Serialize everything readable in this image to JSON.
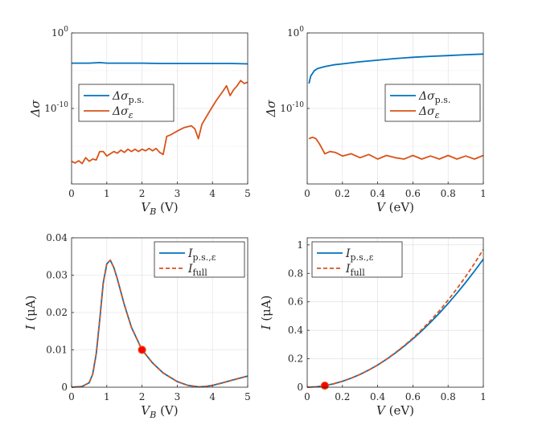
{
  "colors": {
    "blue": "#0072BD",
    "orange": "#D95319",
    "marker_fill": "#FF0000",
    "marker_edge": "#D95319"
  },
  "chart_data": [
    {
      "type": "line",
      "xscale": "linear",
      "yscale": "log",
      "xlabel_main": "V",
      "xlabel_sub": "B",
      "xlabel_unit": "(V)",
      "ylabel": "Δσ",
      "xlim": [
        0,
        5
      ],
      "ylim": [
        1e-20,
        1
      ],
      "xticks": [
        "0",
        "1",
        "2",
        "3",
        "4",
        "5"
      ],
      "yticks": [
        {
          "base": "10",
          "exp": "0"
        },
        {
          "base": "10",
          "exp": "-10"
        }
      ],
      "legend_position": "center-left",
      "series": [
        {
          "name": "Δσp.s.",
          "legend_main": "Δσ",
          "legend_sub": "p.s.",
          "color": "blue",
          "x": [
            0,
            0.5,
            0.8,
            1.0,
            1.5,
            2.0,
            2.5,
            3.0,
            3.5,
            4.0,
            4.5,
            5.0
          ],
          "y": [
            0.0001,
            0.0001,
            0.00012,
            0.0001,
            0.0001,
            0.0001,
            9e-05,
            9e-05,
            9e-05,
            9e-05,
            9e-05,
            8e-05
          ]
        },
        {
          "name": "Δσε",
          "legend_main": "Δσ",
          "legend_sub": "ε",
          "color": "orange",
          "x": [
            0,
            0.1,
            0.2,
            0.3,
            0.4,
            0.5,
            0.6,
            0.7,
            0.8,
            0.9,
            1.0,
            1.1,
            1.2,
            1.3,
            1.4,
            1.5,
            1.6,
            1.7,
            1.8,
            1.9,
            2.0,
            2.1,
            2.2,
            2.3,
            2.4,
            2.5,
            2.6,
            2.7,
            2.8,
            3.0,
            3.2,
            3.4,
            3.5,
            3.6,
            3.7,
            3.9,
            4.1,
            4.3,
            4.4,
            4.5,
            4.6,
            4.7,
            4.8,
            4.9,
            5.0
          ],
          "y": [
            1e-17,
            6e-18,
            1.2e-17,
            5e-18,
            3e-17,
            1e-17,
            2e-17,
            1.5e-17,
            2e-16,
            2e-16,
            5e-17,
            1e-16,
            2e-16,
            1.2e-16,
            3e-16,
            1.5e-16,
            4e-16,
            2e-16,
            4e-16,
            2e-16,
            4e-16,
            2.5e-16,
            5e-16,
            2.5e-16,
            5e-16,
            1.5e-16,
            8e-17,
            2e-14,
            3e-14,
            1e-13,
            3e-13,
            5e-13,
            2e-13,
            1e-14,
            8e-13,
            3e-11,
            1e-09,
            2e-08,
            1e-07,
            5e-09,
            3e-08,
            1e-07,
            5e-07,
            2e-07,
            3e-07
          ]
        }
      ]
    },
    {
      "type": "line",
      "xscale": "linear",
      "yscale": "log",
      "xlabel_main": "V",
      "xlabel_sub": "",
      "xlabel_unit": "(eV)",
      "ylabel": "Δσ",
      "xlim": [
        0,
        1
      ],
      "ylim": [
        1e-20,
        1
      ],
      "xticks": [
        "0",
        "0.2",
        "0.4",
        "0.6",
        "0.8",
        "1"
      ],
      "yticks": [
        {
          "base": "10",
          "exp": "0"
        },
        {
          "base": "10",
          "exp": "-10"
        }
      ],
      "legend_position": "center-right",
      "series": [
        {
          "name": "Δσp.s.",
          "legend_main": "Δσ",
          "legend_sub": "p.s.",
          "color": "blue",
          "x": [
            0.01,
            0.02,
            0.04,
            0.06,
            0.1,
            0.15,
            0.2,
            0.3,
            0.4,
            0.5,
            0.6,
            0.7,
            0.8,
            0.9,
            1.0
          ],
          "y": [
            2e-07,
            2e-06,
            1e-05,
            2e-05,
            3.5e-05,
            6e-05,
            8e-05,
            0.00015,
            0.00025,
            0.0004,
            0.0006,
            0.0008,
            0.001,
            0.0013,
            0.0016
          ]
        },
        {
          "name": "Δσε",
          "legend_main": "Δσ",
          "legend_sub": "ε",
          "color": "orange",
          "x": [
            0.01,
            0.03,
            0.05,
            0.07,
            0.1,
            0.13,
            0.16,
            0.2,
            0.25,
            0.3,
            0.35,
            0.4,
            0.45,
            0.5,
            0.55,
            0.6,
            0.65,
            0.7,
            0.75,
            0.8,
            0.85,
            0.9,
            0.95,
            1.0
          ],
          "y": [
            1e-14,
            1.5e-14,
            1e-14,
            2e-15,
            1e-16,
            2e-16,
            1.5e-16,
            5e-17,
            1e-16,
            3e-17,
            8e-17,
            2e-17,
            6e-17,
            3e-17,
            2e-17,
            6e-17,
            2e-17,
            5e-17,
            2e-17,
            6e-17,
            2e-17,
            5e-17,
            2e-17,
            6e-17
          ]
        }
      ]
    },
    {
      "type": "line",
      "xscale": "linear",
      "yscale": "linear",
      "xlabel_main": "V",
      "xlabel_sub": "B",
      "xlabel_unit": "(V)",
      "ylabel": "I (μA)",
      "xlim": [
        0,
        5
      ],
      "ylim": [
        0,
        0.04
      ],
      "xticks": [
        "0",
        "1",
        "2",
        "3",
        "4",
        "5"
      ],
      "yticks": [
        "0",
        "0.01",
        "0.02",
        "0.03",
        "0.04"
      ],
      "legend_position": "top-right",
      "series": [
        {
          "name": "Ip.s.,ε",
          "legend_main": "I",
          "legend_sub": "p.s.,ε",
          "color": "blue",
          "dash": false,
          "x": [
            0,
            0.3,
            0.5,
            0.6,
            0.7,
            0.8,
            0.9,
            1.0,
            1.1,
            1.2,
            1.3,
            1.5,
            1.7,
            2.0,
            2.3,
            2.6,
            3.0,
            3.3,
            3.6,
            3.8,
            4.0,
            4.3,
            4.6,
            5.0
          ],
          "y": [
            0,
            0.0002,
            0.0012,
            0.0035,
            0.009,
            0.018,
            0.028,
            0.033,
            0.034,
            0.032,
            0.029,
            0.022,
            0.016,
            0.01,
            0.0065,
            0.0038,
            0.0015,
            0.0005,
            0.0001,
            0.0002,
            0.0005,
            0.0012,
            0.002,
            0.003
          ]
        },
        {
          "name": "Ifull",
          "legend_main": "I",
          "legend_sub": "full",
          "color": "orange",
          "dash": true,
          "x": [
            0,
            0.3,
            0.5,
            0.6,
            0.7,
            0.8,
            0.9,
            1.0,
            1.1,
            1.2,
            1.3,
            1.5,
            1.7,
            2.0,
            2.3,
            2.6,
            3.0,
            3.3,
            3.6,
            3.8,
            4.0,
            4.3,
            4.6,
            5.0
          ],
          "y": [
            0,
            0.0002,
            0.0012,
            0.0035,
            0.009,
            0.018,
            0.028,
            0.033,
            0.034,
            0.032,
            0.029,
            0.022,
            0.016,
            0.01,
            0.0065,
            0.0038,
            0.0015,
            0.0005,
            0.0001,
            0.0002,
            0.0005,
            0.0012,
            0.002,
            0.003
          ]
        }
      ],
      "marker": {
        "x": 2.0,
        "y": 0.01
      }
    },
    {
      "type": "line",
      "xscale": "linear",
      "yscale": "linear",
      "xlabel_main": "V",
      "xlabel_sub": "",
      "xlabel_unit": "(eV)",
      "ylabel": "I (μA)",
      "xlim": [
        0,
        1
      ],
      "ylim": [
        0,
        1.05
      ],
      "xticks": [
        "0",
        "0.2",
        "0.4",
        "0.6",
        "0.8",
        "1"
      ],
      "yticks": [
        "0",
        "0.2",
        "0.4",
        "0.6",
        "0.8",
        "1"
      ],
      "legend_position": "top-left",
      "series": [
        {
          "name": "Ip.s.,ε",
          "legend_main": "I",
          "legend_sub": "p.s.,ε",
          "color": "blue",
          "dash": false,
          "x": [
            0,
            0.05,
            0.1,
            0.15,
            0.2,
            0.25,
            0.3,
            0.35,
            0.4,
            0.45,
            0.5,
            0.55,
            0.6,
            0.65,
            0.7,
            0.75,
            0.8,
            0.85,
            0.9,
            0.95,
            1.0
          ],
          "y": [
            0,
            0.003,
            0.011,
            0.024,
            0.042,
            0.064,
            0.09,
            0.121,
            0.156,
            0.196,
            0.24,
            0.288,
            0.34,
            0.396,
            0.456,
            0.52,
            0.588,
            0.66,
            0.736,
            0.816,
            0.9
          ]
        },
        {
          "name": "Ifull",
          "legend_main": "I",
          "legend_sub": "full",
          "color": "orange",
          "dash": true,
          "x": [
            0,
            0.05,
            0.1,
            0.15,
            0.2,
            0.25,
            0.3,
            0.35,
            0.4,
            0.45,
            0.5,
            0.55,
            0.6,
            0.65,
            0.7,
            0.75,
            0.8,
            0.85,
            0.9,
            0.95,
            1.0
          ],
          "y": [
            0,
            0.003,
            0.011,
            0.024,
            0.042,
            0.064,
            0.09,
            0.121,
            0.156,
            0.197,
            0.242,
            0.291,
            0.345,
            0.404,
            0.468,
            0.537,
            0.612,
            0.692,
            0.778,
            0.87,
            0.968
          ]
        }
      ],
      "marker": {
        "x": 0.1,
        "y": 0.011
      }
    }
  ]
}
